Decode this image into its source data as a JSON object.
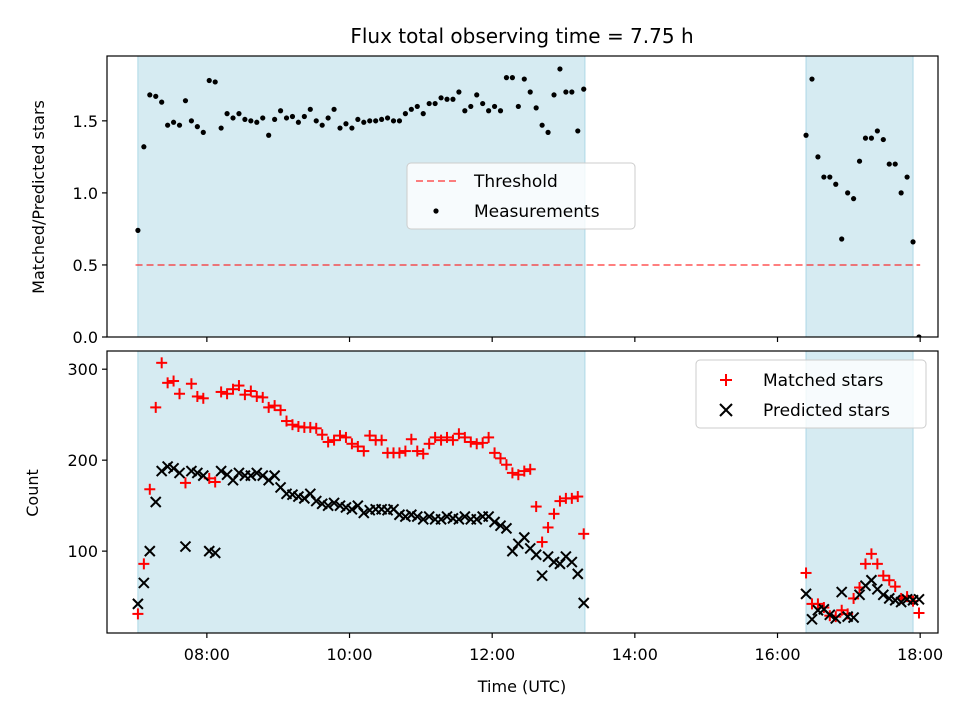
{
  "title": "Flux total observing time = 7.75 h",
  "colors": {
    "span": "#add8e6",
    "threshold": "#ff0000",
    "measurement": "#000000",
    "matched": "#ff0000",
    "predicted": "#000000"
  },
  "top_panel": {
    "ylabel": "Matched/Predicted stars",
    "legend": {
      "threshold": "Threshold",
      "measurements": "Measurements"
    }
  },
  "bottom_panel": {
    "ylabel": "Count",
    "xlabel": "Time (UTC)",
    "legend": {
      "matched": "Matched stars",
      "predicted": "Predicted stars"
    }
  },
  "chart_data": [
    {
      "type": "scatter",
      "panel": "top",
      "ylabel": "Matched/Predicted stars",
      "ylim": [
        0,
        1.95
      ],
      "xlim": [
        "06:36",
        "18:15"
      ],
      "yticks": [
        "0.0",
        "0.5",
        "1.0",
        "1.5"
      ],
      "yticks_values": [
        0,
        0.5,
        1.0,
        1.5
      ],
      "observing_spans": [
        [
          "07:02",
          "13:18"
        ],
        [
          "16:24",
          "17:54"
        ]
      ],
      "threshold": {
        "name": "Threshold",
        "value": 0.5,
        "x_range": [
          "07:00",
          "18:00"
        ],
        "style": "dashed",
        "alpha": 0.5
      },
      "series": [
        {
          "name": "Measurements",
          "x": [
            "07:02",
            "07:07",
            "07:12",
            "07:17",
            "07:22",
            "07:27",
            "07:32",
            "07:37",
            "07:42",
            "07:47",
            "07:52",
            "07:57",
            "08:02",
            "08:07",
            "08:12",
            "08:17",
            "08:22",
            "08:27",
            "08:32",
            "08:37",
            "08:42",
            "08:47",
            "08:52",
            "08:57",
            "09:02",
            "09:07",
            "09:12",
            "09:17",
            "09:22",
            "09:27",
            "09:32",
            "09:37",
            "09:42",
            "09:47",
            "09:52",
            "09:57",
            "10:02",
            "10:07",
            "10:12",
            "10:17",
            "10:22",
            "10:27",
            "10:32",
            "10:37",
            "10:42",
            "10:47",
            "10:52",
            "10:57",
            "11:02",
            "11:07",
            "11:12",
            "11:17",
            "11:22",
            "11:27",
            "11:32",
            "11:37",
            "11:42",
            "11:47",
            "11:52",
            "11:57",
            "12:02",
            "12:07",
            "12:12",
            "12:17",
            "12:22",
            "12:27",
            "12:32",
            "12:37",
            "12:42",
            "12:47",
            "12:52",
            "12:57",
            "13:02",
            "13:07",
            "13:12",
            "13:17",
            "16:24",
            "16:29",
            "16:34",
            "16:39",
            "16:44",
            "16:49",
            "16:54",
            "16:59",
            "17:04",
            "17:09",
            "17:14",
            "17:19",
            "17:24",
            "17:29",
            "17:34",
            "17:39",
            "17:44",
            "17:49",
            "17:54",
            "17:59"
          ],
          "y": [
            0.74,
            1.32,
            1.68,
            1.67,
            1.63,
            1.47,
            1.49,
            1.47,
            1.64,
            1.5,
            1.46,
            1.42,
            1.78,
            1.77,
            1.45,
            1.55,
            1.52,
            1.55,
            1.51,
            1.5,
            1.49,
            1.52,
            1.4,
            1.51,
            1.57,
            1.52,
            1.53,
            1.49,
            1.53,
            1.58,
            1.5,
            1.47,
            1.52,
            1.58,
            1.45,
            1.48,
            1.45,
            1.51,
            1.49,
            1.5,
            1.5,
            1.51,
            1.52,
            1.5,
            1.5,
            1.55,
            1.58,
            1.6,
            1.55,
            1.62,
            1.62,
            1.66,
            1.65,
            1.65,
            1.7,
            1.57,
            1.6,
            1.68,
            1.62,
            1.57,
            1.6,
            1.57,
            1.8,
            1.8,
            1.6,
            1.79,
            1.7,
            1.59,
            1.47,
            1.42,
            1.68,
            1.86,
            1.7,
            1.7,
            1.43,
            1.72,
            1.4,
            1.79,
            1.25,
            1.11,
            1.11,
            1.06,
            0.68,
            1.0,
            0.96,
            1.22,
            1.38,
            1.38,
            1.43,
            1.37,
            1.2,
            1.2,
            1.0,
            1.11,
            0.66,
            0.0
          ]
        }
      ],
      "legend_position": "center"
    },
    {
      "type": "scatter",
      "panel": "bottom",
      "xlabel": "Time (UTC)",
      "ylabel": "Count",
      "ylim": [
        10,
        320
      ],
      "xlim": [
        "06:36",
        "18:15"
      ],
      "xticks": [
        "08:00",
        "10:00",
        "12:00",
        "14:00",
        "16:00",
        "18:00"
      ],
      "yticks": [
        "100",
        "200",
        "300"
      ],
      "yticks_values": [
        100,
        200,
        300
      ],
      "observing_spans": [
        [
          "07:02",
          "13:18"
        ],
        [
          "16:24",
          "17:54"
        ]
      ],
      "series": [
        {
          "name": "Matched stars",
          "marker": "+",
          "x": [
            "07:02",
            "07:07",
            "07:12",
            "07:17",
            "07:22",
            "07:27",
            "07:32",
            "07:37",
            "07:42",
            "07:47",
            "07:52",
            "07:57",
            "08:02",
            "08:07",
            "08:12",
            "08:17",
            "08:22",
            "08:27",
            "08:32",
            "08:37",
            "08:42",
            "08:47",
            "08:52",
            "08:57",
            "09:02",
            "09:07",
            "09:12",
            "09:17",
            "09:22",
            "09:27",
            "09:32",
            "09:37",
            "09:42",
            "09:47",
            "09:52",
            "09:57",
            "10:02",
            "10:07",
            "10:12",
            "10:17",
            "10:22",
            "10:27",
            "10:32",
            "10:37",
            "10:42",
            "10:47",
            "10:52",
            "10:57",
            "11:02",
            "11:07",
            "11:12",
            "11:17",
            "11:22",
            "11:27",
            "11:32",
            "11:37",
            "11:42",
            "11:47",
            "11:52",
            "11:57",
            "12:02",
            "12:07",
            "12:12",
            "12:17",
            "12:22",
            "12:27",
            "12:32",
            "12:37",
            "12:42",
            "12:47",
            "12:52",
            "12:57",
            "13:02",
            "13:07",
            "13:12",
            "13:17",
            "16:24",
            "16:29",
            "16:34",
            "16:39",
            "16:44",
            "16:49",
            "16:54",
            "16:59",
            "17:04",
            "17:09",
            "17:14",
            "17:19",
            "17:24",
            "17:29",
            "17:34",
            "17:39",
            "17:44",
            "17:49",
            "17:54",
            "17:59"
          ],
          "y": [
            31,
            86,
            168,
            258,
            307,
            285,
            287,
            273,
            175,
            284,
            270,
            268,
            180,
            176,
            275,
            273,
            278,
            282,
            272,
            276,
            270,
            269,
            258,
            260,
            255,
            243,
            239,
            237,
            236,
            236,
            235,
            228,
            220,
            222,
            227,
            225,
            218,
            215,
            210,
            227,
            222,
            222,
            208,
            208,
            208,
            210,
            223,
            210,
            207,
            218,
            225,
            222,
            225,
            222,
            229,
            225,
            220,
            218,
            219,
            225,
            208,
            202,
            195,
            186,
            184,
            188,
            190,
            149,
            110,
            126,
            141,
            155,
            158,
            158,
            160,
            119,
            76,
            42,
            42,
            38,
            29,
            28,
            35,
            31,
            48,
            60,
            86,
            97,
            86,
            73,
            68,
            61,
            48,
            50,
            45,
            32
          ]
        },
        {
          "name": "Predicted stars",
          "marker": "x",
          "x": [
            "07:02",
            "07:07",
            "07:12",
            "07:17",
            "07:22",
            "07:27",
            "07:32",
            "07:37",
            "07:42",
            "07:47",
            "07:52",
            "07:57",
            "08:02",
            "08:07",
            "08:12",
            "08:17",
            "08:22",
            "08:27",
            "08:32",
            "08:37",
            "08:42",
            "08:47",
            "08:52",
            "08:57",
            "09:02",
            "09:07",
            "09:12",
            "09:17",
            "09:22",
            "09:27",
            "09:32",
            "09:37",
            "09:42",
            "09:47",
            "09:52",
            "09:57",
            "10:02",
            "10:07",
            "10:12",
            "10:17",
            "10:22",
            "10:27",
            "10:32",
            "10:37",
            "10:42",
            "10:47",
            "10:52",
            "10:57",
            "11:02",
            "11:07",
            "11:12",
            "11:17",
            "11:22",
            "11:27",
            "11:32",
            "11:37",
            "11:42",
            "11:47",
            "11:52",
            "11:57",
            "12:02",
            "12:07",
            "12:12",
            "12:17",
            "12:22",
            "12:27",
            "12:32",
            "12:37",
            "12:42",
            "12:47",
            "12:52",
            "12:57",
            "13:02",
            "13:07",
            "13:12",
            "13:17",
            "16:24",
            "16:29",
            "16:34",
            "16:39",
            "16:44",
            "16:49",
            "16:54",
            "16:59",
            "17:04",
            "17:09",
            "17:14",
            "17:19",
            "17:24",
            "17:29",
            "17:34",
            "17:39",
            "17:44",
            "17:49",
            "17:54",
            "17:59"
          ],
          "y": [
            42,
            65,
            100,
            154,
            188,
            193,
            191,
            186,
            105,
            188,
            186,
            183,
            100,
            98,
            188,
            184,
            178,
            186,
            183,
            183,
            186,
            183,
            178,
            183,
            170,
            163,
            162,
            160,
            158,
            163,
            155,
            152,
            150,
            153,
            150,
            148,
            146,
            150,
            142,
            145,
            146,
            146,
            145,
            146,
            140,
            138,
            140,
            138,
            135,
            138,
            135,
            135,
            138,
            136,
            135,
            138,
            135,
            135,
            138,
            138,
            132,
            128,
            125,
            100,
            108,
            115,
            103,
            96,
            73,
            94,
            88,
            86,
            94,
            88,
            75,
            43,
            53,
            25,
            35,
            36,
            30,
            26,
            55,
            28,
            27,
            52,
            62,
            68,
            58,
            52,
            48,
            46,
            44,
            47,
            46,
            47
          ]
        }
      ],
      "legend_position": "upper right"
    }
  ]
}
